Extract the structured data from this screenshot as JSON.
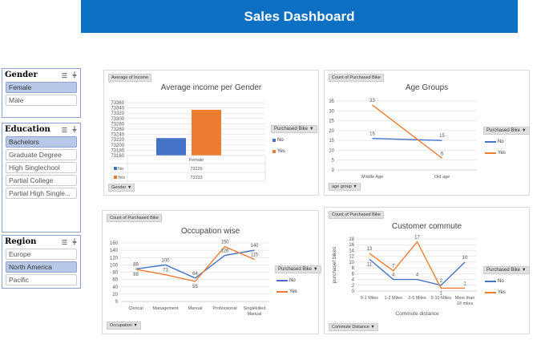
{
  "header": {
    "title": "Sales Dashboard"
  },
  "colors": {
    "no": "#4472c4",
    "yes": "#ed7d31",
    "title_bar": "#0b6fc2",
    "selected": "#b8c8e8"
  },
  "slicers": [
    {
      "title": "Gender",
      "items": [
        {
          "label": "Female",
          "selected": true
        },
        {
          "label": "Male",
          "selected": false
        }
      ]
    },
    {
      "title": "Education",
      "items": [
        {
          "label": "Bachelors",
          "selected": true
        },
        {
          "label": "Graduate Degree",
          "selected": false
        },
        {
          "label": "High Singlechool",
          "selected": false
        },
        {
          "label": "Partial College",
          "selected": false
        },
        {
          "label": "Partial High Single...",
          "selected": false
        }
      ]
    },
    {
      "title": "Region",
      "items": [
        {
          "label": "Europe",
          "selected": false
        },
        {
          "label": "North America",
          "selected": true
        },
        {
          "label": "Pacific",
          "selected": false
        }
      ]
    }
  ],
  "legend": {
    "title": "Purchased Bike",
    "no": "No",
    "yes": "Yes"
  },
  "chart_data": [
    {
      "type": "bar",
      "title": "Average income per Gender",
      "value_field": "Average of Income",
      "axis_field": "Gender",
      "categories": [
        "Female"
      ],
      "series": [
        {
          "name": "No",
          "values": [
            73226
          ]
        },
        {
          "name": "Yes",
          "values": [
            73333
          ]
        }
      ],
      "ylim": [
        73160,
        73360
      ],
      "yticks": [
        73160,
        73180,
        73200,
        73220,
        73240,
        73260,
        73280,
        73300,
        73320,
        73340,
        73360
      ],
      "grid": true,
      "legend": "right",
      "data_table": true
    },
    {
      "type": "line",
      "title": "Age Groups",
      "value_field": "Count of Purchased Bike",
      "axis_field": "age group",
      "categories": [
        "Middle Age",
        "Old age"
      ],
      "series": [
        {
          "name": "No",
          "values": [
            16,
            15
          ]
        },
        {
          "name": "Yes",
          "values": [
            33,
            6
          ]
        }
      ],
      "ylim": [
        0,
        35
      ],
      "yticks": [
        0,
        5,
        10,
        15,
        20,
        25,
        30,
        35
      ],
      "grid": true,
      "legend": "right"
    },
    {
      "type": "line",
      "title": "Occupation wise",
      "value_field": "Count of Purchased Bike",
      "axis_field": "Occupation",
      "categories": [
        "Clerical",
        "Management",
        "Manual",
        "Professional",
        "Singlekilled Manual"
      ],
      "series": [
        {
          "name": "No",
          "values": [
            89,
            100,
            64,
            126,
            140
          ]
        },
        {
          "name": "Yes",
          "values": [
            88,
            73,
            55,
            150,
            115
          ]
        }
      ],
      "ylim": [
        0,
        160
      ],
      "yticks": [
        0,
        20,
        40,
        60,
        80,
        100,
        120,
        140,
        160
      ],
      "grid": true,
      "legend": "right"
    },
    {
      "type": "line",
      "title": "Customer commute",
      "value_field": "Count of Purchased Bike",
      "axis_field": "Commute Distance",
      "xlabel": "Commute distance",
      "ylabel": "purchasef bikes",
      "categories": [
        "0-1 Miles",
        "1-2 Miles",
        "2-5 Miles",
        "5-10 Miles",
        "More than 10 miles"
      ],
      "series": [
        {
          "name": "No",
          "values": [
            11,
            4,
            4,
            2,
            10
          ]
        },
        {
          "name": "Yes",
          "values": [
            13,
            7,
            17,
            1,
            1
          ]
        }
      ],
      "ylim": [
        0,
        18
      ],
      "yticks": [
        0,
        2,
        4,
        6,
        8,
        10,
        12,
        14,
        16,
        18
      ],
      "grid": true,
      "legend": "right"
    }
  ]
}
